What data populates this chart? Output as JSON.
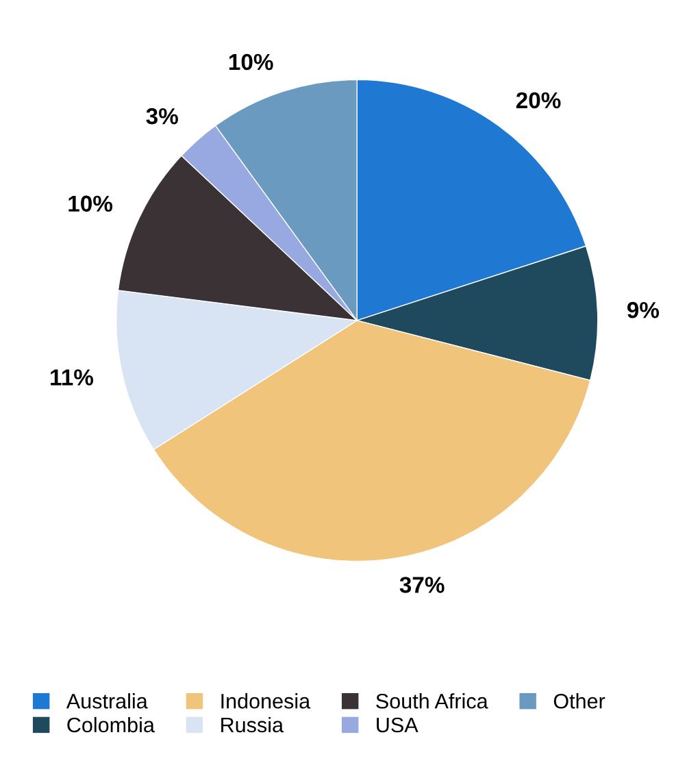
{
  "chart_data": {
    "type": "pie",
    "categories": [
      "Australia",
      "Colombia",
      "Indonesia",
      "Russia",
      "South Africa",
      "USA",
      "Other"
    ],
    "values": [
      20,
      9,
      37,
      11,
      10,
      3,
      10
    ],
    "colors": [
      "#1f78d1",
      "#1f4a5e",
      "#f0c47a",
      "#d8e4f4",
      "#3a3234",
      "#98a8e0",
      "#6a9ac0"
    ],
    "value_labels": [
      "20%",
      "9%",
      "37%",
      "11%",
      "10%",
      "3%",
      "10%"
    ],
    "legend": "bottom"
  }
}
